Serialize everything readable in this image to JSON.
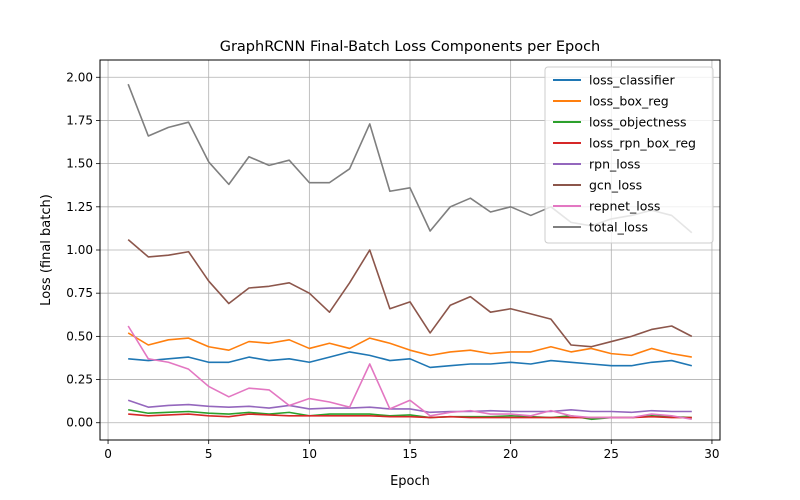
{
  "chart_data": {
    "type": "line",
    "title": "GraphRCNN Final-Batch Loss Components per Epoch",
    "xlabel": "Epoch",
    "ylabel": "Loss (final batch)",
    "xlim": [
      -0.4,
      30.4
    ],
    "ylim": [
      -0.1,
      2.1
    ],
    "xticks": [
      0,
      5,
      10,
      15,
      20,
      25,
      30
    ],
    "yticks": [
      0.0,
      0.25,
      0.5,
      0.75,
      1.0,
      1.25,
      1.5,
      1.75,
      2.0
    ],
    "xtick_labels": [
      "0",
      "5",
      "10",
      "15",
      "20",
      "25",
      "30"
    ],
    "ytick_labels": [
      "0.00",
      "0.25",
      "0.50",
      "0.75",
      "1.00",
      "1.25",
      "1.50",
      "1.75",
      "2.00"
    ],
    "grid": true,
    "legend_position": "top-right",
    "x": [
      1,
      2,
      3,
      4,
      5,
      6,
      7,
      8,
      9,
      10,
      11,
      12,
      13,
      14,
      15,
      16,
      17,
      18,
      19,
      20,
      21,
      22,
      23,
      24,
      25,
      26,
      27,
      28,
      29
    ],
    "series": [
      {
        "name": "loss_classifier",
        "color": "#1f77b4",
        "values": [
          0.37,
          0.36,
          0.37,
          0.38,
          0.35,
          0.35,
          0.38,
          0.36,
          0.37,
          0.35,
          0.38,
          0.41,
          0.39,
          0.36,
          0.37,
          0.32,
          0.33,
          0.34,
          0.34,
          0.35,
          0.34,
          0.36,
          0.35,
          0.34,
          0.33,
          0.33,
          0.35,
          0.36,
          0.33
        ]
      },
      {
        "name": "loss_box_reg",
        "color": "#ff7f0e",
        "values": [
          0.52,
          0.45,
          0.48,
          0.49,
          0.44,
          0.42,
          0.47,
          0.46,
          0.48,
          0.43,
          0.46,
          0.43,
          0.49,
          0.46,
          0.42,
          0.39,
          0.41,
          0.42,
          0.4,
          0.41,
          0.41,
          0.44,
          0.41,
          0.43,
          0.4,
          0.39,
          0.43,
          0.4,
          0.38
        ]
      },
      {
        "name": "loss_objectness",
        "color": "#2ca02c",
        "values": [
          0.075,
          0.055,
          0.06,
          0.065,
          0.055,
          0.05,
          0.06,
          0.05,
          0.06,
          0.04,
          0.05,
          0.05,
          0.05,
          0.04,
          0.045,
          0.03,
          0.035,
          0.035,
          0.035,
          0.04,
          0.035,
          0.03,
          0.04,
          0.02,
          0.03,
          0.03,
          0.04,
          0.035,
          0.03
        ]
      },
      {
        "name": "loss_rpn_box_reg",
        "color": "#d62728",
        "values": [
          0.05,
          0.04,
          0.045,
          0.05,
          0.04,
          0.035,
          0.05,
          0.045,
          0.04,
          0.04,
          0.04,
          0.04,
          0.04,
          0.035,
          0.035,
          0.03,
          0.035,
          0.03,
          0.03,
          0.03,
          0.03,
          0.03,
          0.03,
          0.03,
          0.03,
          0.03,
          0.035,
          0.03,
          0.03
        ]
      },
      {
        "name": "rpn_loss",
        "color": "#9467bd",
        "values": [
          0.13,
          0.09,
          0.1,
          0.105,
          0.095,
          0.09,
          0.095,
          0.085,
          0.1,
          0.08,
          0.085,
          0.085,
          0.09,
          0.08,
          0.08,
          0.06,
          0.065,
          0.065,
          0.07,
          0.065,
          0.065,
          0.065,
          0.075,
          0.065,
          0.065,
          0.06,
          0.07,
          0.065,
          0.065
        ]
      },
      {
        "name": "gcn_loss",
        "color": "#8c564b",
        "values": [
          1.06,
          0.96,
          0.97,
          0.99,
          0.82,
          0.69,
          0.78,
          0.79,
          0.81,
          0.75,
          0.64,
          0.81,
          1.0,
          0.66,
          0.7,
          0.52,
          0.68,
          0.73,
          0.64,
          0.66,
          0.63,
          0.6,
          0.45,
          0.44,
          0.47,
          0.5,
          0.54,
          0.56,
          0.5
        ]
      },
      {
        "name": "repnet_loss",
        "color": "#e377c2",
        "values": [
          0.56,
          0.37,
          0.35,
          0.31,
          0.21,
          0.15,
          0.2,
          0.19,
          0.1,
          0.14,
          0.12,
          0.09,
          0.34,
          0.08,
          0.13,
          0.04,
          0.06,
          0.07,
          0.05,
          0.05,
          0.04,
          0.07,
          0.04,
          0.03,
          0.03,
          0.03,
          0.05,
          0.04,
          0.02
        ]
      },
      {
        "name": "total_loss",
        "color": "#7f7f7f",
        "values": [
          1.96,
          1.66,
          1.71,
          1.74,
          1.51,
          1.38,
          1.54,
          1.49,
          1.52,
          1.39,
          1.39,
          1.47,
          1.73,
          1.34,
          1.36,
          1.11,
          1.25,
          1.3,
          1.22,
          1.25,
          1.2,
          1.25,
          1.16,
          1.14,
          1.18,
          1.2,
          1.23,
          1.2,
          1.1
        ]
      }
    ]
  }
}
